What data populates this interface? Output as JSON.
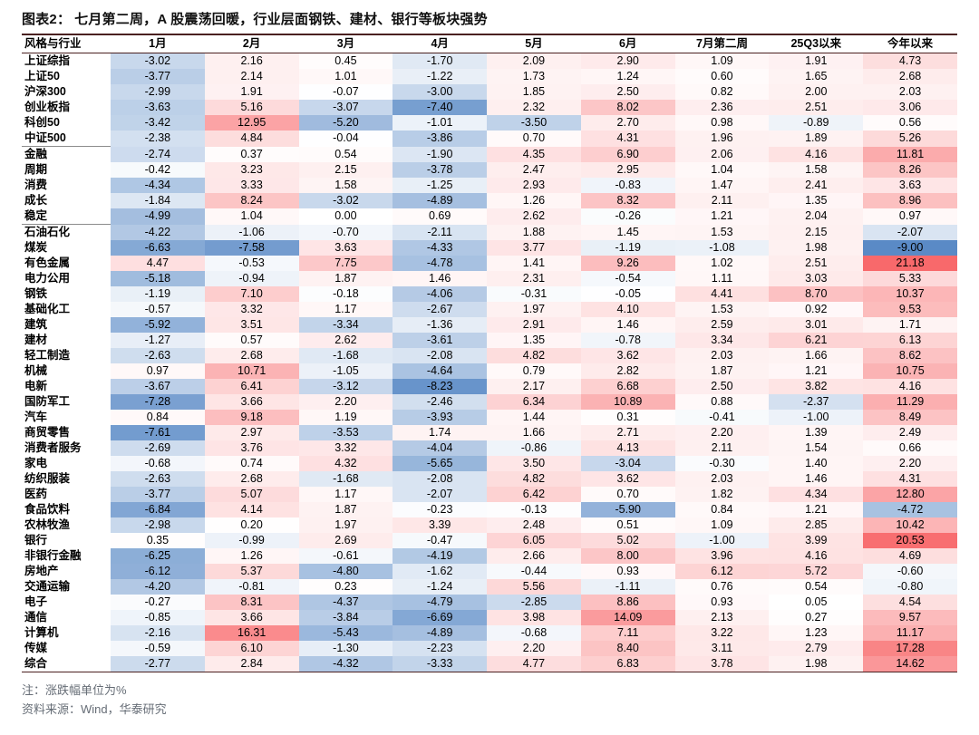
{
  "title": {
    "prefix": "图表2：",
    "text": "七月第二周，A 股震荡回暖，行业层面钢铁、建材、银行等板块强势"
  },
  "notes": {
    "note1": "注：涨跌幅单位为%",
    "note2": "资料来源：Wind，华泰研究"
  },
  "colors": {
    "positive_max": "#F8696B",
    "negative_max": "#5A8AC6",
    "midpoint": "#FFFFFF",
    "rule_line": "#4a2020"
  },
  "chart_data": {
    "type": "heatmap",
    "title": "七月第二周，A 股震荡回暖，行业层面钢铁、建材、银行等板块强势",
    "value_unit": "%",
    "columns": [
      "风格与行业",
      "1月",
      "2月",
      "3月",
      "4月",
      "5月",
      "6月",
      "7月第二周",
      "25Q3以来",
      "今年以来"
    ],
    "group_breaks_after": [
      "中证500",
      "稳定"
    ],
    "rows": [
      {
        "name": "上证综指",
        "values": [
          -3.02,
          2.16,
          0.45,
          -1.7,
          2.09,
          2.9,
          1.09,
          1.91,
          4.73
        ]
      },
      {
        "name": "上证50",
        "values": [
          -3.77,
          2.14,
          1.01,
          -1.22,
          1.73,
          1.24,
          0.6,
          1.65,
          2.68
        ]
      },
      {
        "name": "沪深300",
        "values": [
          -2.99,
          1.91,
          -0.07,
          -3.0,
          1.85,
          2.5,
          0.82,
          2.0,
          2.03
        ]
      },
      {
        "name": "创业板指",
        "values": [
          -3.63,
          5.16,
          -3.07,
          -7.4,
          2.32,
          8.02,
          2.36,
          2.51,
          3.06
        ]
      },
      {
        "name": "科创50",
        "values": [
          -3.42,
          12.95,
          -5.2,
          -1.01,
          -3.5,
          2.7,
          0.98,
          -0.89,
          0.56
        ]
      },
      {
        "name": "中证500",
        "values": [
          -2.38,
          4.84,
          -0.04,
          -3.86,
          0.7,
          4.31,
          1.96,
          1.89,
          5.26
        ]
      },
      {
        "name": "金融",
        "values": [
          -2.74,
          0.37,
          0.54,
          -1.9,
          4.35,
          6.9,
          2.06,
          4.16,
          11.81
        ]
      },
      {
        "name": "周期",
        "values": [
          -0.42,
          3.23,
          2.15,
          -3.78,
          2.47,
          2.95,
          1.04,
          1.58,
          8.26
        ]
      },
      {
        "name": "消费",
        "values": [
          -4.34,
          3.33,
          1.58,
          -1.25,
          2.93,
          -0.83,
          1.47,
          2.41,
          3.63
        ]
      },
      {
        "name": "成长",
        "values": [
          -1.84,
          8.24,
          -3.02,
          -4.89,
          1.26,
          8.32,
          2.11,
          1.35,
          8.96
        ]
      },
      {
        "name": "稳定",
        "values": [
          -4.99,
          1.04,
          0.0,
          0.69,
          2.62,
          -0.26,
          1.21,
          2.04,
          0.97
        ]
      },
      {
        "name": "石油石化",
        "values": [
          -4.22,
          -1.06,
          -0.7,
          -2.11,
          1.88,
          1.45,
          1.53,
          2.15,
          -2.07
        ]
      },
      {
        "name": "煤炭",
        "values": [
          -6.63,
          -7.58,
          3.63,
          -4.33,
          3.77,
          -1.19,
          -1.08,
          1.98,
          -9.0
        ]
      },
      {
        "name": "有色金属",
        "values": [
          4.47,
          -0.53,
          7.75,
          -4.78,
          1.41,
          9.26,
          1.02,
          2.51,
          21.18
        ]
      },
      {
        "name": "电力公用",
        "values": [
          -5.18,
          -0.94,
          1.87,
          1.46,
          2.31,
          -0.54,
          1.11,
          3.03,
          5.33
        ]
      },
      {
        "name": "钢铁",
        "values": [
          -1.19,
          7.1,
          -0.18,
          -4.06,
          -0.31,
          -0.05,
          4.41,
          8.7,
          10.37
        ]
      },
      {
        "name": "基础化工",
        "values": [
          -0.57,
          3.32,
          1.17,
          -2.67,
          1.97,
          4.1,
          1.53,
          0.92,
          9.53
        ]
      },
      {
        "name": "建筑",
        "values": [
          -5.92,
          3.51,
          -3.34,
          -1.36,
          2.91,
          1.46,
          2.59,
          3.01,
          1.71
        ]
      },
      {
        "name": "建材",
        "values": [
          -1.27,
          0.57,
          2.62,
          -3.61,
          1.35,
          -0.78,
          3.34,
          6.21,
          6.13
        ]
      },
      {
        "name": "轻工制造",
        "values": [
          -2.63,
          2.68,
          -1.68,
          -2.08,
          4.82,
          3.62,
          2.03,
          1.66,
          8.62
        ]
      },
      {
        "name": "机械",
        "values": [
          0.97,
          10.71,
          -1.05,
          -4.64,
          0.79,
          2.82,
          1.87,
          1.21,
          10.75
        ]
      },
      {
        "name": "电新",
        "values": [
          -3.67,
          6.41,
          -3.12,
          -8.23,
          2.17,
          6.68,
          2.5,
          3.82,
          4.16
        ]
      },
      {
        "name": "国防军工",
        "values": [
          -7.28,
          3.66,
          2.2,
          -2.46,
          6.34,
          10.89,
          0.88,
          -2.37,
          11.29
        ]
      },
      {
        "name": "汽车",
        "values": [
          0.84,
          9.18,
          1.19,
          -3.93,
          1.44,
          0.31,
          -0.41,
          -1.0,
          8.49
        ]
      },
      {
        "name": "商贸零售",
        "values": [
          -7.61,
          2.97,
          -3.53,
          1.74,
          1.66,
          2.71,
          2.2,
          1.39,
          2.49
        ]
      },
      {
        "name": "消费者服务",
        "values": [
          -2.69,
          3.76,
          3.32,
          -4.04,
          -0.86,
          4.13,
          2.11,
          1.54,
          0.66
        ]
      },
      {
        "name": "家电",
        "values": [
          -0.68,
          0.74,
          4.32,
          -5.65,
          3.5,
          -3.04,
          -0.3,
          1.4,
          2.2
        ]
      },
      {
        "name": "纺织服装",
        "values": [
          -2.63,
          2.68,
          -1.68,
          -2.08,
          4.82,
          3.62,
          2.03,
          1.46,
          4.31
        ]
      },
      {
        "name": "医药",
        "values": [
          -3.77,
          5.07,
          1.17,
          -2.07,
          6.42,
          0.7,
          1.82,
          4.34,
          12.8
        ]
      },
      {
        "name": "食品饮料",
        "values": [
          -6.84,
          4.14,
          1.87,
          -0.23,
          -0.13,
          -5.9,
          0.84,
          1.21,
          -4.72
        ]
      },
      {
        "name": "农林牧渔",
        "values": [
          -2.98,
          0.2,
          1.97,
          3.39,
          2.48,
          0.51,
          1.09,
          2.85,
          10.42
        ]
      },
      {
        "name": "银行",
        "values": [
          0.35,
          -0.99,
          2.69,
          -0.47,
          6.05,
          5.02,
          -1.0,
          3.99,
          20.53
        ]
      },
      {
        "name": "非银行金融",
        "values": [
          -6.25,
          1.26,
          -0.61,
          -4.19,
          2.66,
          8.0,
          3.96,
          4.16,
          4.69
        ]
      },
      {
        "name": "房地产",
        "values": [
          -6.12,
          5.37,
          -4.8,
          -1.62,
          -0.44,
          0.93,
          6.12,
          5.72,
          -0.6
        ]
      },
      {
        "name": "交通运输",
        "values": [
          -4.2,
          -0.81,
          0.23,
          -1.24,
          5.56,
          -1.11,
          0.76,
          0.54,
          -0.8
        ]
      },
      {
        "name": "电子",
        "values": [
          -0.27,
          8.31,
          -4.37,
          -4.79,
          -2.85,
          8.86,
          0.93,
          0.05,
          4.54
        ]
      },
      {
        "name": "通信",
        "values": [
          -0.85,
          3.66,
          -3.84,
          -6.69,
          3.98,
          14.09,
          2.13,
          0.27,
          9.57
        ]
      },
      {
        "name": "计算机",
        "values": [
          -2.16,
          16.31,
          -5.43,
          -4.89,
          -0.68,
          7.11,
          3.22,
          1.23,
          11.17
        ]
      },
      {
        "name": "传媒",
        "values": [
          -0.59,
          6.1,
          -1.3,
          -2.23,
          2.2,
          8.4,
          3.11,
          2.79,
          17.28
        ]
      },
      {
        "name": "综合",
        "values": [
          -2.77,
          2.84,
          -4.32,
          -3.33,
          4.77,
          6.83,
          3.78,
          1.98,
          14.62
        ]
      }
    ]
  }
}
